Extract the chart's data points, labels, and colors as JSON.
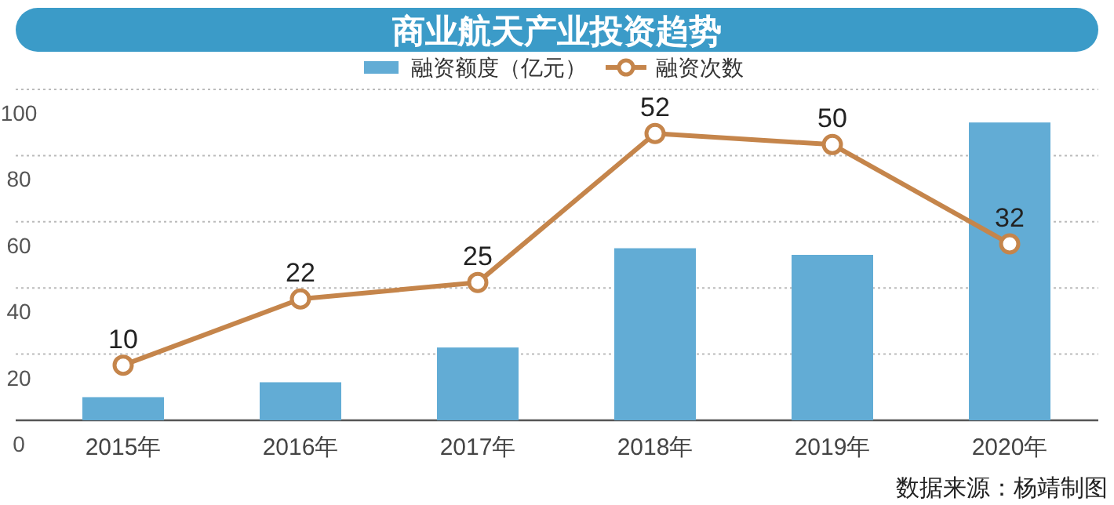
{
  "chart_data": {
    "type": "bar",
    "title": "商业航天产业投资趋势",
    "categories": [
      "2015年",
      "2016年",
      "2017年",
      "2018年",
      "2019年",
      "2020年"
    ],
    "series": [
      {
        "name": "融资额度（亿元）",
        "color": "#62acd5",
        "values": [
          7,
          11.5,
          22,
          52,
          50,
          90
        ]
      },
      {
        "name": "融资次数",
        "type": "line",
        "axis": "y2",
        "color": "#c5854b",
        "marker": "circle",
        "values": [
          10,
          22,
          25,
          52,
          50,
          32
        ],
        "data_labels": true
      }
    ],
    "ylim": [
      0,
      100
    ],
    "yticks": [
      0,
      20,
      40,
      60,
      80,
      100
    ],
    "y2lim": [
      0,
      60
    ],
    "grid": "y",
    "legend": "top",
    "tick_labels": "xy",
    "annotations": [
      "数据来源：杨靖制图"
    ]
  }
}
